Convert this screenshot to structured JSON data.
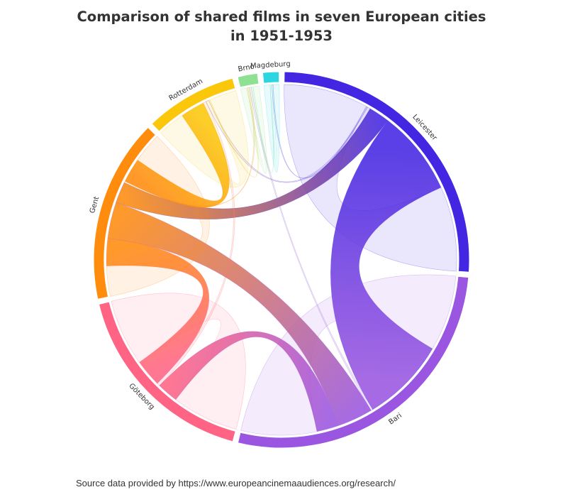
{
  "chart_data": {
    "type": "chord",
    "title": "Comparison of shared films in seven European cities in 1951-1953",
    "source": "Source data provided by https://www.europeancinemaaudiences.org/research/",
    "nodes": [
      {
        "name": "Leicester",
        "color": "#4326e2"
      },
      {
        "name": "Bari",
        "color": "#9a56e0"
      },
      {
        "name": "Göteborg",
        "color": "#ff6484"
      },
      {
        "name": "Gent",
        "color": "#ff8c0c"
      },
      {
        "name": "Rotterdam",
        "color": "#fbc70a"
      },
      {
        "name": "Brno",
        "color": "#8ee092"
      },
      {
        "name": "Magdeburg",
        "color": "#2bd6e0"
      }
    ],
    "links": [
      {
        "source": "Leicester",
        "target": "Leicester",
        "value": 28
      },
      {
        "source": "Leicester",
        "target": "Bari",
        "value": 28
      },
      {
        "source": "Leicester",
        "target": "Gent",
        "value": 7
      },
      {
        "source": "Leicester",
        "target": "Rotterdam",
        "value": 1
      },
      {
        "source": "Leicester",
        "target": "Magdeburg",
        "value": 0.4
      },
      {
        "source": "Bari",
        "target": "Bari",
        "value": 25
      },
      {
        "source": "Bari",
        "target": "Göteborg",
        "value": 7
      },
      {
        "source": "Bari",
        "target": "Gent",
        "value": 12
      },
      {
        "source": "Bari",
        "target": "Brno",
        "value": 0.6
      },
      {
        "source": "Göteborg",
        "target": "Göteborg",
        "value": 22
      },
      {
        "source": "Göteborg",
        "target": "Gent",
        "value": 9
      },
      {
        "source": "Göteborg",
        "target": "Rotterdam",
        "value": 1
      },
      {
        "source": "Gent",
        "target": "Gent",
        "value": 10
      },
      {
        "source": "Gent",
        "target": "Rotterdam",
        "value": 8
      },
      {
        "source": "Gent",
        "target": "Brno",
        "value": 0.5
      },
      {
        "source": "Rotterdam",
        "target": "Rotterdam",
        "value": 9
      },
      {
        "source": "Rotterdam",
        "target": "Brno",
        "value": 0.4
      },
      {
        "source": "Brno",
        "target": "Brno",
        "value": 2
      },
      {
        "source": "Brno",
        "target": "Magdeburg",
        "value": 0.6
      },
      {
        "source": "Magdeburg",
        "target": "Magdeburg",
        "value": 2
      }
    ]
  }
}
